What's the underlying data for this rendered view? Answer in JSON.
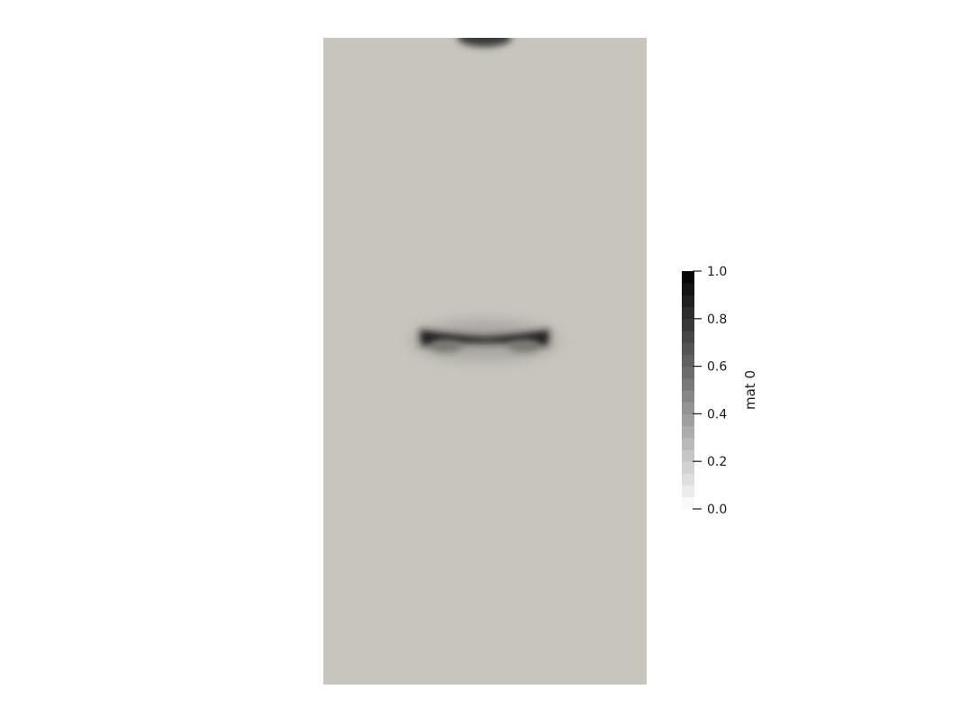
{
  "chart_data": {
    "type": "heatmap",
    "colormap": "grayscale",
    "background_color": "#c8c5bd",
    "colorbar": {
      "title": "mat 0",
      "range": [
        0.0,
        1.0
      ],
      "ticks": [
        {
          "value": 0.0,
          "label": "0.0"
        },
        {
          "value": 0.2,
          "label": "0.2"
        },
        {
          "value": 0.4,
          "label": "0.4"
        },
        {
          "value": 0.6,
          "label": "0.6"
        },
        {
          "value": 0.8,
          "label": "0.8"
        },
        {
          "value": 1.0,
          "label": "1.0"
        }
      ],
      "low_color": "#ffffff",
      "high_color": "#000000",
      "placement": "right"
    }
  }
}
